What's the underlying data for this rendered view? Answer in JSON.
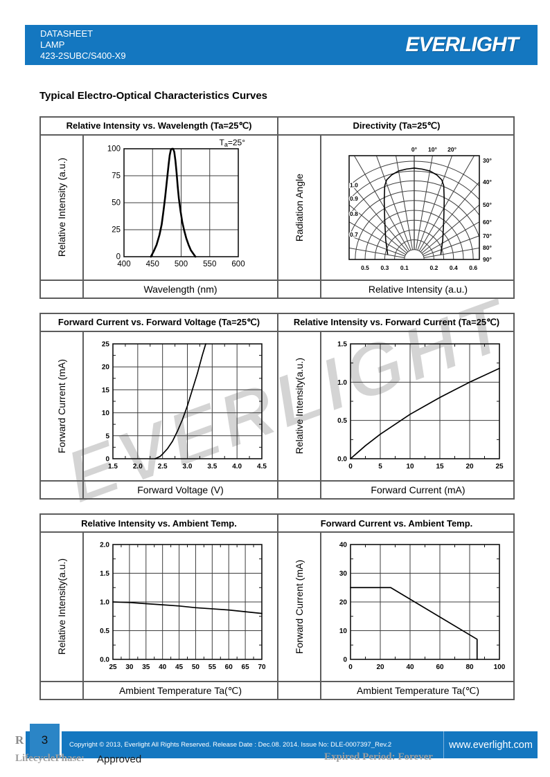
{
  "colors": {
    "brand_blue": "#1477c0",
    "page_num_blue": "#2b85c6",
    "grid_line": "#3c3c3c",
    "plot_border": "#111111",
    "curve": "#000000",
    "table_border": "#5c5c5c",
    "watermark_gray": "#d4d4d4"
  },
  "header": {
    "doc_type": "DATASHEET",
    "category": "LAMP",
    "part_number": "423-2SUBC/S400-X9",
    "logo_text": "EVERLIGHT"
  },
  "section_title": "Typical Electro-Optical Characteristics Curves",
  "watermark_text": "EVERLIGHT",
  "chart_data": [
    {
      "type": "line",
      "title": "Relative Intensity vs. Wavelength (Ta=25℃)",
      "xlabel": "Wavelength (nm)",
      "ylabel": "Relative Intensity (a.u.)",
      "annotation": "Ta=25°",
      "xlim": [
        400,
        600
      ],
      "ylim": [
        0,
        100
      ],
      "xticks": [
        "400",
        "450",
        "500",
        "550",
        "600"
      ],
      "yticks": [
        "0",
        "25",
        "50",
        "75",
        "100"
      ],
      "grid": true,
      "series": [
        {
          "name": "emission-spectrum",
          "points": [
            [
              447,
              0
            ],
            [
              452,
              5
            ],
            [
              457,
              11
            ],
            [
              462,
              20
            ],
            [
              466,
              30
            ],
            [
              469,
              42
            ],
            [
              472,
              55
            ],
            [
              475,
              70
            ],
            [
              478,
              85
            ],
            [
              480,
              94
            ],
            [
              482,
              99
            ],
            [
              484,
              100
            ],
            [
              486,
              100
            ],
            [
              488,
              97
            ],
            [
              490,
              89
            ],
            [
              492,
              78
            ],
            [
              494,
              65
            ],
            [
              496,
              54
            ],
            [
              499,
              42
            ],
            [
              502,
              32
            ],
            [
              505,
              25
            ],
            [
              509,
              17
            ],
            [
              513,
              11
            ],
            [
              517,
              6
            ],
            [
              521,
              3
            ],
            [
              525,
              0
            ]
          ]
        }
      ]
    },
    {
      "type": "polar",
      "title": "Directivity (Ta=25℃)",
      "xlabel": "Relative Intensity (a.u.)",
      "ylabel": "Radiation Angle",
      "angle_labels_top": [
        "0°",
        "10°",
        "20°"
      ],
      "angle_labels_right": [
        "30°",
        "40°",
        "50°",
        "60°",
        "70°",
        "80°",
        "90°"
      ],
      "radius_labels": [
        "1.0",
        "0.9",
        "0.8",
        "0.7"
      ],
      "radius_label_values": [
        1.0,
        0.9,
        0.8,
        0.7
      ],
      "bottom_labels": [
        "0.5",
        "0.3",
        "0.1",
        "0.2",
        "0.4",
        "0.6"
      ],
      "bottom_positions": [
        -0.5,
        -0.3,
        -0.1,
        0.2,
        0.4,
        0.6
      ],
      "rings": [
        0.1,
        0.2,
        0.3,
        0.4,
        0.5,
        0.6,
        0.7,
        0.8,
        0.9,
        1.0
      ],
      "angle_step_deg": 10,
      "lobe_half": [
        [
          0,
          0.93
        ],
        [
          0.08,
          0.92
        ],
        [
          0.16,
          0.9
        ],
        [
          0.23,
          0.86
        ],
        [
          0.28,
          0.81
        ],
        [
          0.3,
          0.75
        ],
        [
          0.305,
          0.6
        ],
        [
          0.3,
          0.4
        ],
        [
          0.29,
          0.2
        ],
        [
          0.27,
          0.05
        ]
      ]
    },
    {
      "type": "line",
      "title": "Forward Current vs. Forward Voltage (Ta=25℃)",
      "xlabel": "Forward Voltage (V)",
      "ylabel": "Forward Current (mA)",
      "xlim": [
        1.5,
        4.5
      ],
      "ylim": [
        0,
        25
      ],
      "xticks": [
        "1.5",
        "2.0",
        "2.5",
        "3.0",
        "3.5",
        "4.0",
        "4.5"
      ],
      "yticks": [
        "0",
        "5",
        "10",
        "15",
        "20",
        "25"
      ],
      "x_minor": 2,
      "y_minor": 2,
      "grid": true,
      "series": [
        {
          "name": "forward-current-vs-voltage",
          "points": [
            [
              2.35,
              0
            ],
            [
              2.45,
              0.5
            ],
            [
              2.5,
              1
            ],
            [
              2.6,
              2.2
            ],
            [
              2.7,
              3.8
            ],
            [
              2.8,
              6
            ],
            [
              2.9,
              8.5
            ],
            [
              3.0,
              11.5
            ],
            [
              3.1,
              15
            ],
            [
              3.2,
              18.5
            ],
            [
              3.3,
              22.5
            ],
            [
              3.37,
              25
            ]
          ]
        }
      ]
    },
    {
      "type": "line",
      "title": "Relative Intensity vs. Forward Current (Ta=25℃)",
      "xlabel": "Forward Current (mA)",
      "ylabel": "Relative Intensity(a.u.)",
      "xlim": [
        0,
        25
      ],
      "ylim": [
        0,
        1.5
      ],
      "xticks": [
        "0",
        "5",
        "10",
        "15",
        "20",
        "25"
      ],
      "yticks": [
        "0.0",
        "0.5",
        "1.0",
        "1.5"
      ],
      "x_minor": 2,
      "y_minor": 2,
      "grid": true,
      "series": [
        {
          "name": "relative-intensity-vs-current",
          "points": [
            [
              0,
              0
            ],
            [
              2.5,
              0.17
            ],
            [
              5,
              0.32
            ],
            [
              7.5,
              0.45
            ],
            [
              10,
              0.58
            ],
            [
              12.5,
              0.69
            ],
            [
              15,
              0.8
            ],
            [
              17.5,
              0.9
            ],
            [
              20,
              1.0
            ],
            [
              22.5,
              1.09
            ],
            [
              25,
              1.18
            ]
          ]
        }
      ]
    },
    {
      "type": "line",
      "title": "Relative Intensity vs. Ambient Temp.",
      "xlabel": "Ambient Temperature Ta(℃)",
      "ylabel": "Relative Intensity(a.u.)",
      "xlim": [
        25,
        70
      ],
      "ylim": [
        0,
        2
      ],
      "xticks": [
        "25",
        "30",
        "35",
        "40",
        "45",
        "50",
        "55",
        "60",
        "65",
        "70"
      ],
      "yticks": [
        "0.0",
        "0.5",
        "1.0",
        "1.5",
        "2.0"
      ],
      "x_minor": 2,
      "y_minor": 2,
      "grid": true,
      "series": [
        {
          "name": "relative-intensity-vs-ambient-temp",
          "points": [
            [
              25,
              1.0
            ],
            [
              30,
              0.99
            ],
            [
              35,
              0.97
            ],
            [
              40,
              0.95
            ],
            [
              45,
              0.93
            ],
            [
              50,
              0.9
            ],
            [
              55,
              0.88
            ],
            [
              60,
              0.86
            ],
            [
              65,
              0.83
            ],
            [
              70,
              0.8
            ]
          ]
        }
      ]
    },
    {
      "type": "line",
      "title": "Forward Current vs. Ambient Temp.",
      "xlabel": "Ambient Temperature Ta(℃)",
      "ylabel": "Forward Current (mA)",
      "xlim": [
        0,
        100
      ],
      "ylim": [
        0,
        40
      ],
      "xticks": [
        "0",
        "20",
        "40",
        "60",
        "80",
        "100"
      ],
      "yticks": [
        "0",
        "10",
        "20",
        "30",
        "40"
      ],
      "x_minor": 2,
      "y_minor": 2,
      "grid": true,
      "series": [
        {
          "name": "current-derating",
          "points": [
            [
              0,
              25
            ],
            [
              27,
              25
            ],
            [
              85,
              7
            ],
            [
              85,
              0
            ]
          ]
        }
      ]
    }
  ],
  "footer": {
    "page_number": "3",
    "copyright": "Copyright © 2013, Everlight All Rights Reserved. Release Date : Dec.08. 2014. Issue No: DLE-0007397_Rev.2",
    "website": "www.everlight.com",
    "watermark_letter": "R",
    "lifecycle_label": "LifecyclePhase:",
    "lifecycle_value": "Approved",
    "expired_text": "Expired Period: Forever"
  }
}
